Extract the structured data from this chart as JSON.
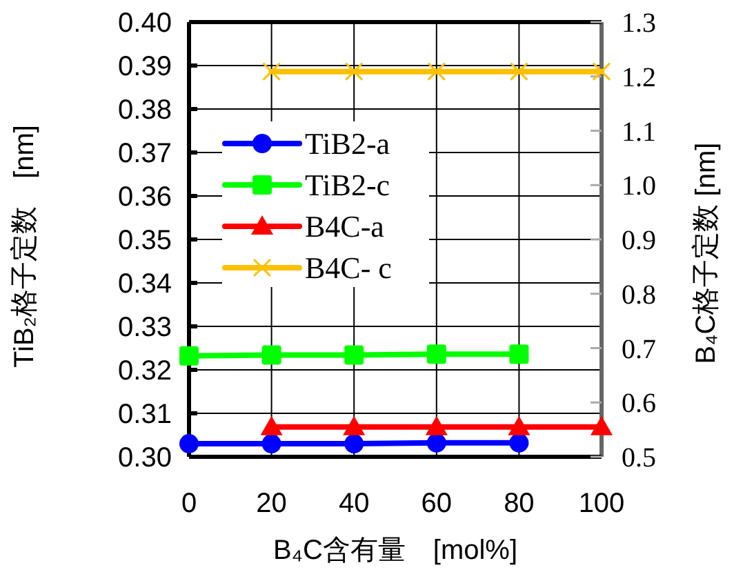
{
  "chart_data": {
    "type": "line",
    "xlabel": "B₄C含有量　[mol%]",
    "ylabel": "TiB₂格子定数　[nm]",
    "y2label": "B₄C格子定数 [nm]",
    "xlim": [
      0,
      100
    ],
    "xticks": [
      0,
      20,
      40,
      60,
      80,
      100
    ],
    "ylim": [
      0.3,
      0.4
    ],
    "yticks": [
      {
        "value": 0.3,
        "label": "0.30"
      },
      {
        "value": 0.31,
        "label": "0.31"
      },
      {
        "value": 0.32,
        "label": "0.32"
      },
      {
        "value": 0.33,
        "label": "0.33"
      },
      {
        "value": 0.34,
        "label": "0.34"
      },
      {
        "value": 0.35,
        "label": "0.35"
      },
      {
        "value": 0.36,
        "label": "0.36"
      },
      {
        "value": 0.37,
        "label": "0.37"
      },
      {
        "value": 0.38,
        "label": "0.38"
      },
      {
        "value": 0.39,
        "label": "0.39"
      },
      {
        "value": 0.4,
        "label": "0.40"
      }
    ],
    "y2lim": [
      0.5,
      1.3
    ],
    "y2ticks": [
      0.5,
      0.6,
      0.7,
      0.8,
      0.9,
      {
        "value": 1.0,
        "label": "1.0"
      },
      1.1,
      1.2,
      1.3
    ],
    "grid": true,
    "legend": "top left",
    "series": [
      {
        "name": "TiB2-a",
        "color": "#0000ff",
        "marker": "circle",
        "x": [
          0,
          20,
          40,
          60,
          80
        ],
        "values": [
          0.303,
          0.303,
          0.303,
          0.3032,
          0.3032
        ]
      },
      {
        "name": "TiB2-c",
        "color": "#00ff00",
        "marker": "square",
        "x": [
          0,
          20,
          40,
          60,
          80
        ],
        "values": [
          0.3232,
          0.3234,
          0.3234,
          0.3236,
          0.3236
        ]
      },
      {
        "name": "B4C-a",
        "color": "#ff0000",
        "marker": "triangle",
        "axis": "y2",
        "x": [
          20,
          40,
          60,
          80,
          100
        ],
        "values": [
          0.555,
          0.555,
          0.555,
          0.555,
          0.555
        ]
      },
      {
        "name": "B4C- c",
        "color": "#ffc000",
        "marker": "cross",
        "axis": "y2",
        "x": [
          20,
          40,
          60,
          80,
          100
        ],
        "values": [
          1.209,
          1.209,
          1.209,
          1.209,
          1.209
        ]
      }
    ]
  }
}
